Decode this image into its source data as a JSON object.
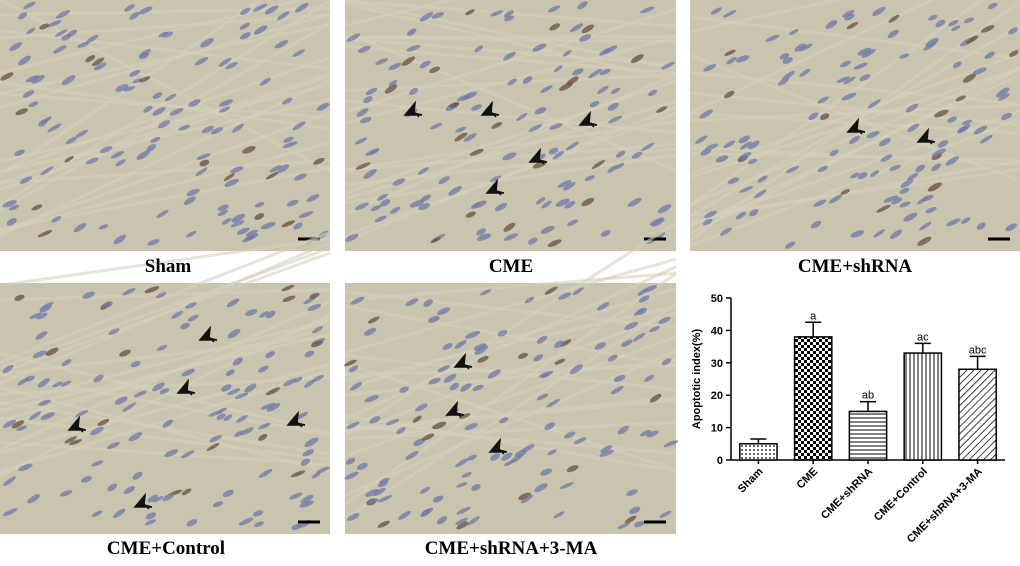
{
  "panels": [
    {
      "label": "Sham"
    },
    {
      "label": "CME"
    },
    {
      "label": "CME+shRNA"
    },
    {
      "label": "CME+Control"
    },
    {
      "label": "CME+shRNA+3-MA"
    }
  ],
  "chart_data": {
    "type": "bar",
    "ylabel": "Apoptotic index(%)",
    "categories": [
      "Sham",
      "CME",
      "CME+shRNA",
      "CME+Control",
      "CME+shRNA+3-MA"
    ],
    "values": [
      5,
      38,
      15,
      33,
      28
    ],
    "errors": [
      1.5,
      4.5,
      3,
      3,
      4
    ],
    "annotations": [
      null,
      "a",
      "ab",
      "ac",
      "abc"
    ],
    "patterns": [
      "dots",
      "checker",
      "hlines",
      "vlines",
      "diag"
    ],
    "color": "#000000",
    "ylim": [
      0,
      50
    ],
    "yticks": [
      0,
      10,
      20,
      30,
      40,
      50
    ]
  }
}
